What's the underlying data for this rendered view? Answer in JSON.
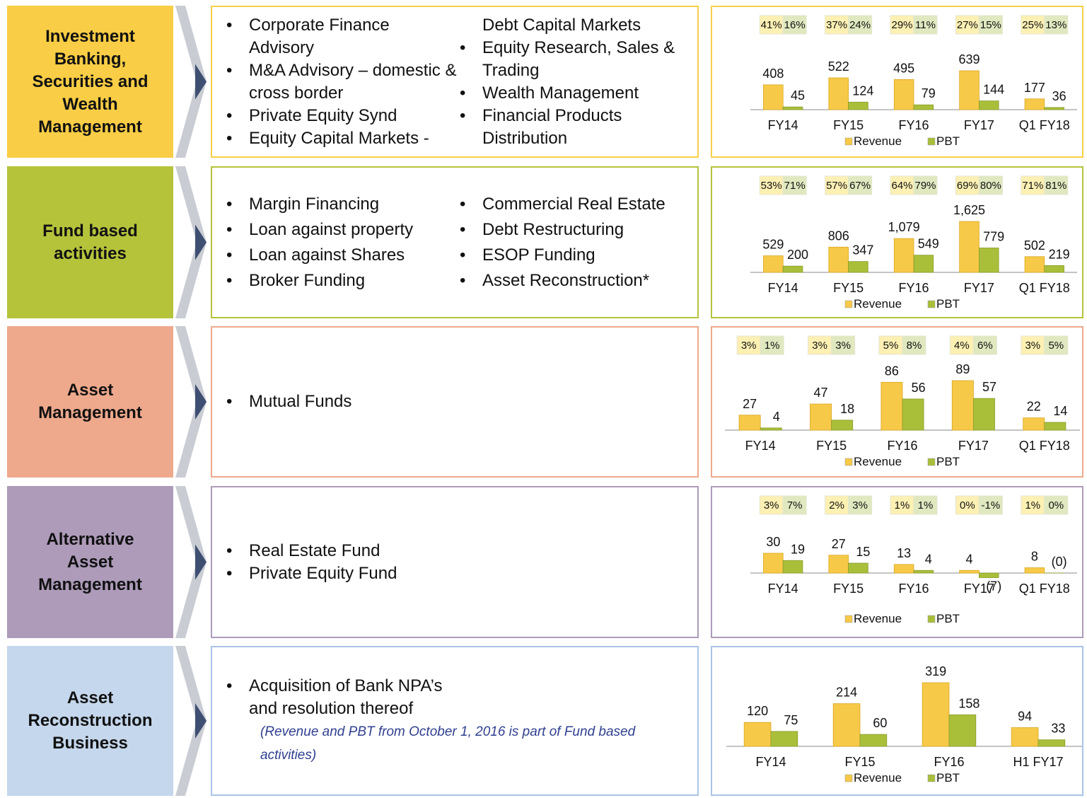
{
  "rows": [
    {
      "label": "Investment Banking, Securities and Wealth Management",
      "columns": [
        [
          "Corporate Finance Advisory",
          "M&A Advisory – domestic & cross border",
          "Private Equity Synd",
          "Equity Capital Markets -"
        ],
        [
          "Equity Research, Sales & Trading",
          "Wealth Management",
          "Financial Products Distribution"
        ]
      ],
      "continuation": "Debt Capital Markets"
    },
    {
      "label": "Fund based activities",
      "columns": [
        [
          "Margin Financing",
          "Loan against property",
          "Loan against Shares",
          "Broker Funding"
        ],
        [
          "Commercial Real Estate",
          "Debt Restructuring",
          "ESOP Funding",
          "Asset Reconstruction*"
        ]
      ]
    },
    {
      "label": "Asset Management",
      "columns": [
        [
          "Mutual Funds"
        ]
      ]
    },
    {
      "label": "Alternative Asset Management",
      "columns": [
        [
          "Real Estate  Fund",
          "Private Equity Fund"
        ]
      ]
    },
    {
      "label": "Asset Reconstruction Business",
      "columns": [
        [
          "Acquisition of Bank NPA’s and resolution thereof"
        ]
      ],
      "note": "(Revenue and PBT from October 1, 2016 is part of Fund based activities)"
    }
  ],
  "chart_data": [
    {
      "type": "bar",
      "categories": [
        "FY14",
        "FY15",
        "FY16",
        "FY17",
        "Q1 FY18"
      ],
      "series": [
        {
          "name": "Revenue",
          "color": "#f7c948",
          "values": [
            408,
            522,
            495,
            639,
            177
          ],
          "shares": [
            "41%",
            "37%",
            "29%",
            "27%",
            "25%"
          ]
        },
        {
          "name": "PBT",
          "color": "#a9bf3a",
          "values": [
            45,
            124,
            79,
            144,
            36
          ],
          "shares": [
            "16%",
            "24%",
            "11%",
            "15%",
            "13%"
          ]
        }
      ]
    },
    {
      "type": "bar",
      "categories": [
        "FY14",
        "FY15",
        "FY16",
        "FY17",
        "Q1 FY18"
      ],
      "series": [
        {
          "name": "Revenue",
          "color": "#f7c948",
          "values": [
            529,
            806,
            1079,
            1625,
            502
          ],
          "value_labels": [
            "529",
            "806",
            "1,079",
            "1,625",
            "502"
          ],
          "shares": [
            "53%",
            "57%",
            "64%",
            "69%",
            "71%"
          ]
        },
        {
          "name": "PBT",
          "color": "#a9bf3a",
          "values": [
            200,
            347,
            549,
            779,
            219
          ],
          "shares": [
            "71%",
            "67%",
            "79%",
            "80%",
            "81%"
          ]
        }
      ]
    },
    {
      "type": "bar",
      "categories": [
        "FY14",
        "FY15",
        "FY16",
        "FY17",
        "Q1 FY18"
      ],
      "series": [
        {
          "name": "Revenue",
          "color": "#f7c948",
          "values": [
            27,
            47,
            86,
            89,
            22
          ],
          "shares": [
            "3%",
            "3%",
            "5%",
            "4%",
            "3%"
          ]
        },
        {
          "name": "PBT",
          "color": "#a9bf3a",
          "values": [
            4,
            18,
            56,
            57,
            14
          ],
          "shares": [
            "1%",
            "3%",
            "8%",
            "6%",
            "5%"
          ]
        }
      ]
    },
    {
      "type": "bar",
      "categories": [
        "FY14",
        "FY15",
        "FY16",
        "FY17",
        "Q1 FY18"
      ],
      "series": [
        {
          "name": "Revenue",
          "color": "#f7c948",
          "values": [
            30,
            27,
            13,
            4,
            8
          ],
          "shares": [
            "3%",
            "2%",
            "1%",
            "0%",
            "1%"
          ]
        },
        {
          "name": "PBT",
          "color": "#a9bf3a",
          "values": [
            19,
            15,
            4,
            -7,
            0
          ],
          "value_labels": [
            "19",
            "15",
            "4",
            "(7)",
            "(0)"
          ],
          "shares": [
            "7%",
            "3%",
            "1%",
            "-1%",
            "0%"
          ]
        }
      ]
    },
    {
      "type": "bar",
      "categories": [
        "FY14",
        "FY15",
        "FY16",
        "H1 FY17"
      ],
      "series": [
        {
          "name": "Revenue",
          "color": "#f7c948",
          "values": [
            120,
            214,
            319,
            94
          ]
        },
        {
          "name": "PBT",
          "color": "#a9bf3a",
          "values": [
            75,
            60,
            158,
            33
          ]
        }
      ]
    }
  ]
}
